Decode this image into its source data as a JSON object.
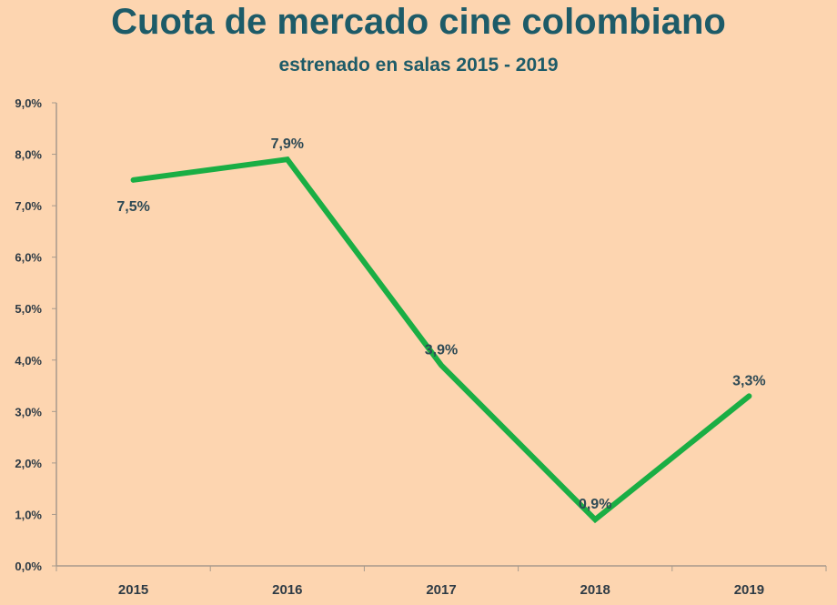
{
  "chart_data": {
    "type": "line",
    "title": "Cuota de mercado cine colombiano",
    "subtitle": "estrenado en salas 2015 - 2019",
    "categories": [
      "2015",
      "2016",
      "2017",
      "2018",
      "2019"
    ],
    "series": [
      {
        "name": "Cuota de mercado",
        "values": [
          7.5,
          7.9,
          3.9,
          0.9,
          3.3
        ],
        "labels": [
          "7,5%",
          "7,9%",
          "3,9%",
          "0,9%",
          "3,3%"
        ],
        "color": "#1aae44"
      }
    ],
    "yticks": [
      "0,0%",
      "1,0%",
      "2,0%",
      "3,0%",
      "4,0%",
      "5,0%",
      "6,0%",
      "7,0%",
      "8,0%",
      "9,0%"
    ],
    "ylim": [
      0,
      9
    ],
    "grid": false,
    "xlabel": "",
    "ylabel": ""
  }
}
